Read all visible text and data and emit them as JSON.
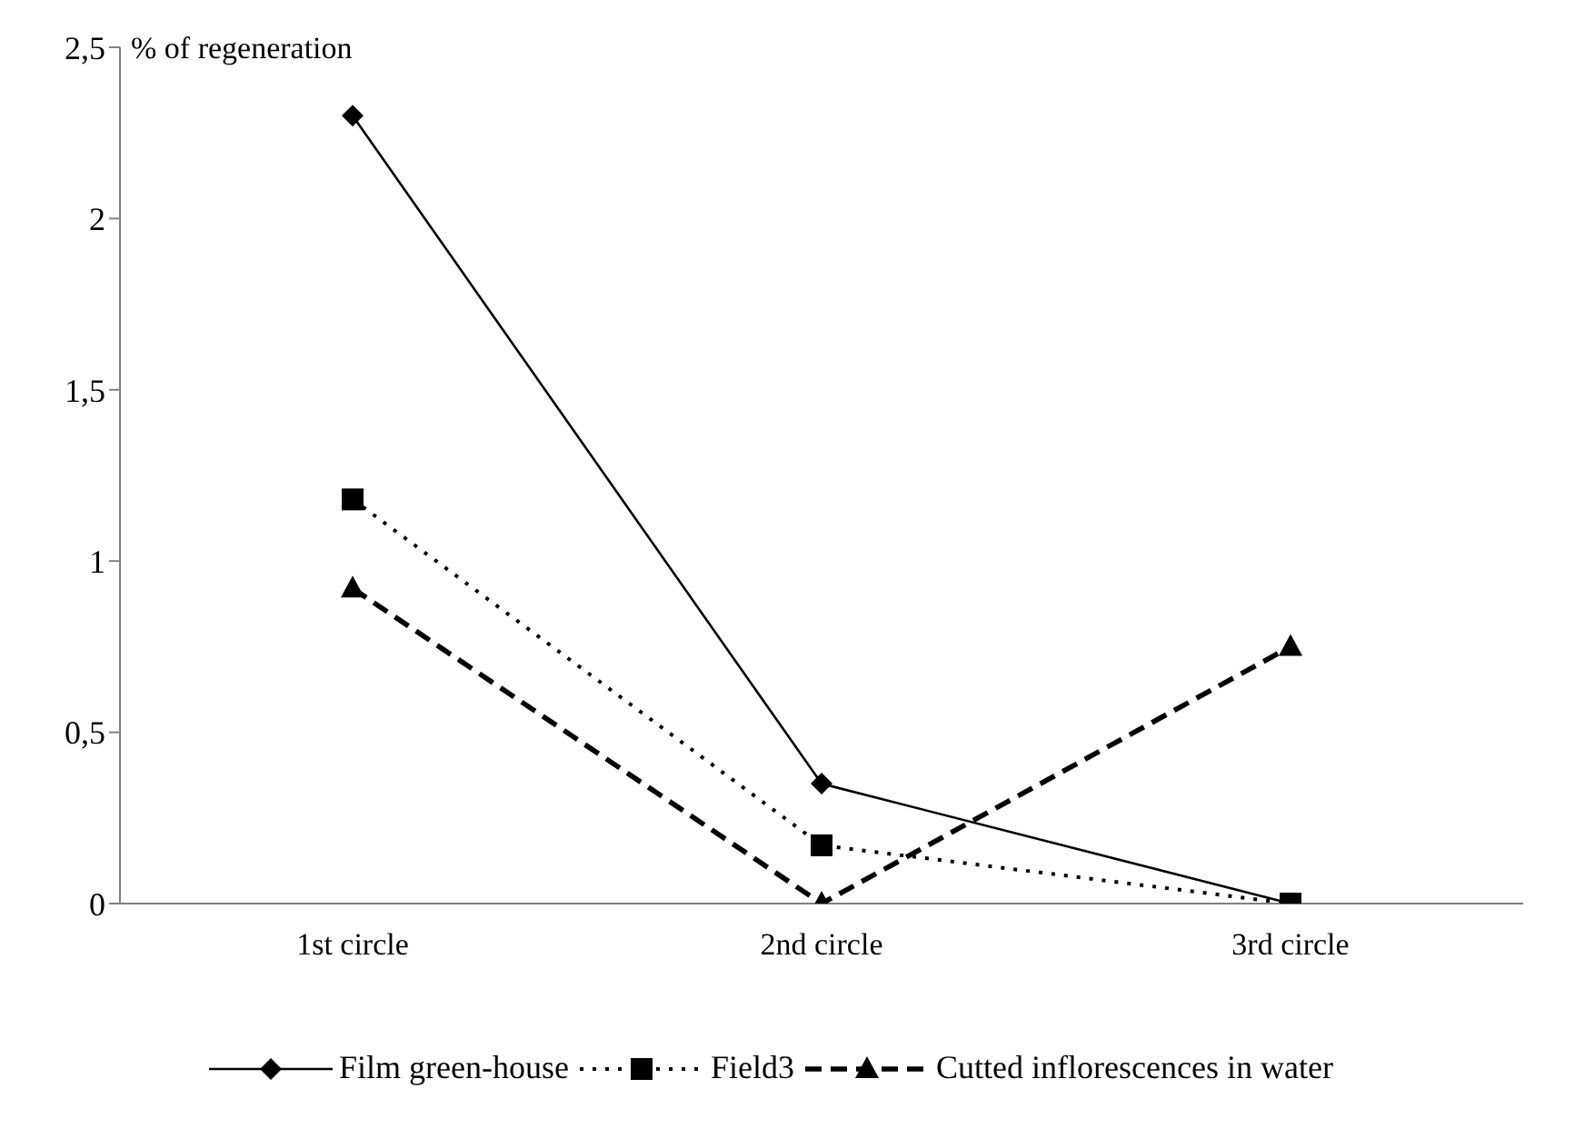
{
  "chart_data": {
    "type": "line",
    "ylabel": "% of regeneration",
    "categories": [
      "1st circle",
      "2nd circle",
      "3rd circle"
    ],
    "series": [
      {
        "name": "Film green-house",
        "color": "#000000",
        "values": [
          2.3,
          0.35,
          0
        ],
        "marker": "diamond",
        "line_style": "solid"
      },
      {
        "name": "Field3",
        "color": "#000000",
        "values": [
          1.18,
          0.17,
          0
        ],
        "marker": "square",
        "line_style": "dotted"
      },
      {
        "name": "Cutted inflorescences in water",
        "color": "#000000",
        "values": [
          0.92,
          0,
          0.75
        ],
        "marker": "triangle",
        "line_style": "dashed"
      }
    ],
    "ylim": [
      0,
      2.5
    ],
    "yticks": [
      0,
      {
        "value": 0.5,
        "label": "0,5"
      },
      1,
      {
        "value": 1.5,
        "label": "1,5"
      },
      2,
      {
        "value": 2.5,
        "label": "2,5"
      }
    ],
    "grid": false,
    "legend": "bottom"
  }
}
